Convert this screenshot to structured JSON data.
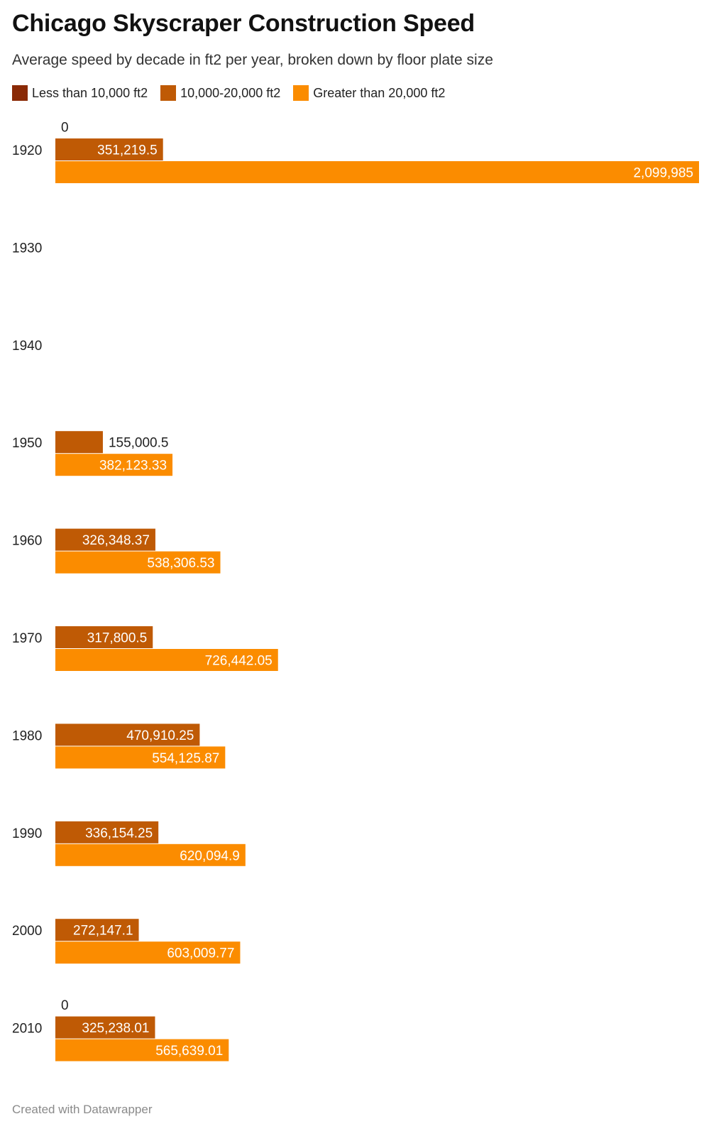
{
  "chart_data": {
    "type": "bar",
    "orientation": "horizontal",
    "title": "Chicago Skyscraper Construction Speed",
    "subtitle": "Average speed by decade in ft2 per year, broken down by floor plate size",
    "categories": [
      "1920",
      "1930",
      "1940",
      "1950",
      "1960",
      "1970",
      "1980",
      "1990",
      "2000",
      "2010"
    ],
    "series": [
      {
        "name": "Less than 10,000 ft2",
        "color": "#8a2a06",
        "values": [
          0,
          null,
          null,
          null,
          null,
          null,
          null,
          null,
          null,
          0
        ],
        "labels": [
          "0",
          "",
          "",
          "",
          "",
          "",
          "",
          "",
          "",
          "0"
        ]
      },
      {
        "name": "10,000-20,000 ft2",
        "color": "#bf5a05",
        "values": [
          351219.5,
          null,
          null,
          155000.5,
          326348.37,
          317800.5,
          470910.25,
          336154.25,
          272147.1,
          325238.01
        ],
        "labels": [
          "351,219.5",
          "",
          "",
          "155,000.5",
          "326,348.37",
          "317,800.5",
          "470,910.25",
          "336,154.25",
          "272,147.1",
          "325,238.01"
        ]
      },
      {
        "name": "Greater than 20,000 ft2",
        "color": "#fb8c00",
        "values": [
          2099985,
          null,
          null,
          382123.33,
          538306.53,
          726442.05,
          554125.87,
          620094.9,
          603009.77,
          565639.01
        ],
        "labels": [
          "2,099,985",
          "",
          "",
          "382,123.33",
          "538,306.53",
          "726,442.05",
          "554,125.87",
          "620,094.9",
          "603,009.77",
          "565,639.01"
        ]
      }
    ],
    "xlim": [
      0,
      2099985
    ],
    "legend_position": "top-left",
    "grid": false
  },
  "footer": "Created with Datawrapper"
}
